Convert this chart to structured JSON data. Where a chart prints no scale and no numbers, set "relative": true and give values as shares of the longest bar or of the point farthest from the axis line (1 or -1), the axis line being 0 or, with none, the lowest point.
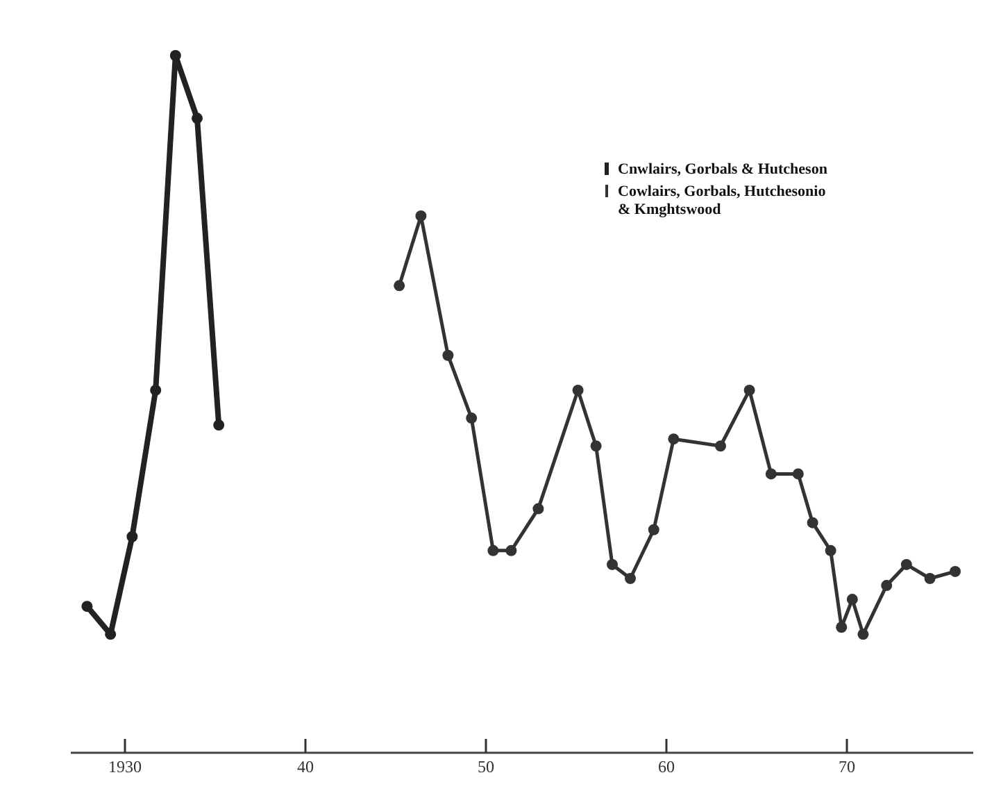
{
  "chart_data": {
    "type": "line",
    "relative": true,
    "marker": "circle",
    "line_style": "solid",
    "legend": "top right",
    "grid": false,
    "xlim": [
      1927,
      1977
    ],
    "xticks": [
      {
        "value": 1930,
        "label": "1930"
      },
      {
        "value": 1940,
        "label": "40"
      },
      {
        "value": 1950,
        "label": "50"
      },
      {
        "value": 1960,
        "label": "60"
      },
      {
        "value": 1970,
        "label": "70"
      }
    ],
    "series": [
      {
        "name": "Cnwlairs, Gorbals & Hutcheson",
        "color": "#222222",
        "x": [
          1927.9,
          1929.2,
          1930.4,
          1931.7,
          1932.8,
          1934.0,
          1935.2
        ],
        "values": [
          0.21,
          0.17,
          0.31,
          0.52,
          1,
          0.91,
          0.47
        ]
      },
      {
        "name": "Cowlairs, Gorbals, Hutchesonio & Kmghtswood",
        "color": "#333333",
        "x": [
          1945.2,
          1946.4,
          1947.9,
          1949.2,
          1950.4,
          1951.4,
          1952.9,
          1955.1,
          1956.1,
          1957.0,
          1958.0,
          1959.3,
          1960.4,
          1963.0,
          1964.6,
          1965.8,
          1967.3,
          1968.1,
          1969.1,
          1969.7,
          1970.3,
          1970.9,
          1972.2,
          1973.3,
          1974.6,
          1976.0
        ],
        "values": [
          0.67,
          0.77,
          0.57,
          0.48,
          0.29,
          0.29,
          0.35,
          0.52,
          0.44,
          0.27,
          0.25,
          0.32,
          0.45,
          0.44,
          0.52,
          0.4,
          0.4,
          0.33,
          0.29,
          0.18,
          0.22,
          0.17,
          0.24,
          0.27,
          0.25,
          0.26
        ]
      }
    ]
  }
}
